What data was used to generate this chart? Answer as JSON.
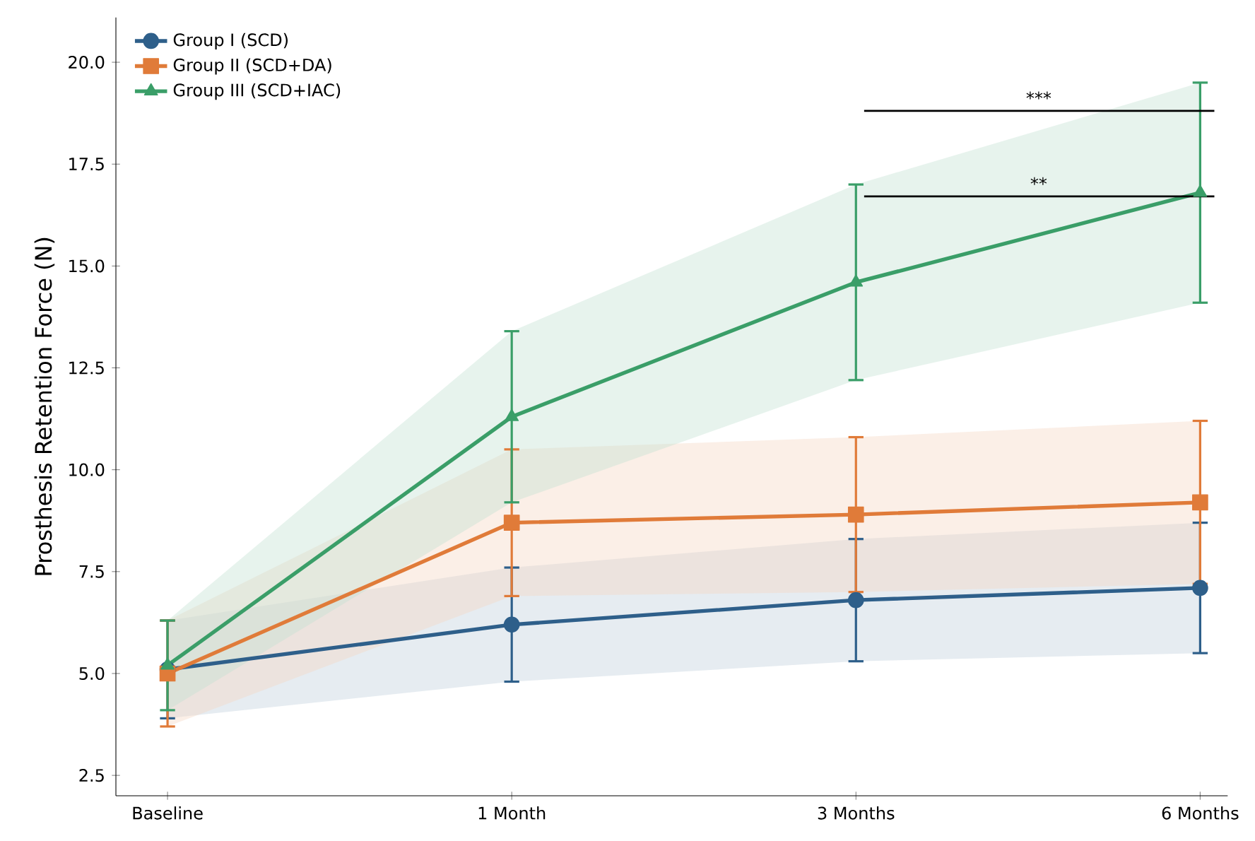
{
  "chart_data": {
    "type": "line",
    "ylabel": "Prosthesis Retention Force (N)",
    "categories": [
      "Baseline",
      "1 Month",
      "3 Months",
      "6 Months"
    ],
    "series": [
      {
        "name": "Group I (SCD)",
        "color": "#2e5f8a",
        "marker": "circle",
        "values": [
          5.1,
          6.2,
          6.8,
          7.1
        ],
        "errors": [
          1.2,
          1.4,
          1.5,
          1.6
        ],
        "lower": [
          3.9,
          4.8,
          5.3,
          5.5
        ],
        "upper": [
          6.3,
          7.6,
          8.3,
          8.7
        ]
      },
      {
        "name": "Group II (SCD+DA)",
        "color": "#e07b39",
        "marker": "square",
        "values": [
          5.0,
          8.7,
          8.9,
          9.2
        ],
        "errors": [
          1.3,
          1.8,
          1.9,
          2.0
        ],
        "lower": [
          3.7,
          6.9,
          7.0,
          7.2
        ],
        "upper": [
          6.3,
          10.5,
          10.8,
          11.2
        ]
      },
      {
        "name": "Group III (SCD+IAC)",
        "color": "#3a9e68",
        "marker": "triangle",
        "values": [
          5.2,
          11.3,
          14.6,
          16.8
        ],
        "errors": [
          1.1,
          2.1,
          2.4,
          2.7
        ],
        "lower": [
          4.1,
          9.2,
          12.2,
          14.1
        ],
        "upper": [
          6.3,
          13.4,
          17.0,
          19.5
        ]
      }
    ],
    "ylim": [
      2.0,
      21.1
    ],
    "yticks": [
      {
        "value": 2.5,
        "label": "2.5"
      },
      {
        "value": 5.0,
        "label": "5.0"
      },
      {
        "value": 7.5,
        "label": "7.5"
      },
      {
        "value": 10.0,
        "label": "10.0"
      },
      {
        "value": 12.5,
        "label": "12.5"
      },
      {
        "value": 15.0,
        "label": "15.0"
      },
      {
        "value": 17.5,
        "label": "17.5"
      },
      {
        "value": 20.0,
        "label": "20.0"
      }
    ],
    "annotations": [
      "***",
      "**"
    ],
    "legend": "top left",
    "grid": false
  }
}
